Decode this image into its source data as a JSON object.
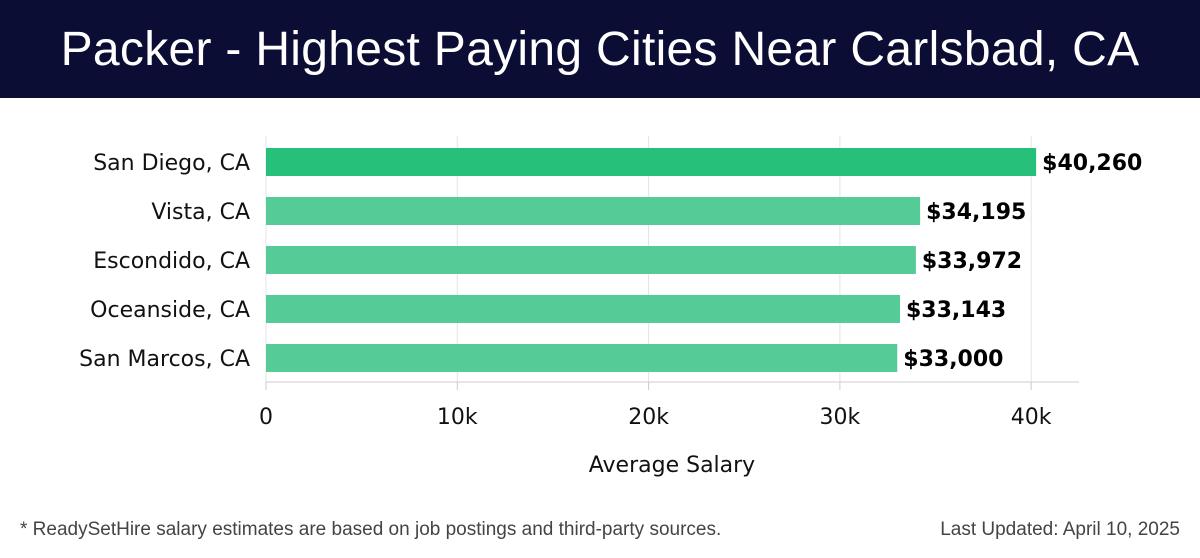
{
  "header": {
    "title": "Packer - Highest Paying Cities Near Carlsbad, CA"
  },
  "chart_data": {
    "type": "bar",
    "orientation": "horizontal",
    "categories": [
      "San Diego, CA",
      "Vista, CA",
      "Escondido, CA",
      "Oceanside, CA",
      "San Marcos, CA"
    ],
    "values": [
      40260,
      34195,
      33972,
      33143,
      33000
    ],
    "value_labels": [
      "$40,260",
      "$34,195",
      "$33,972",
      "$33,143",
      "$33,000"
    ],
    "xticks": [
      0,
      10000,
      20000,
      30000,
      40000
    ],
    "xtick_labels": [
      "0",
      "10k",
      "20k",
      "30k",
      "40k"
    ],
    "xlim": [
      0,
      42500
    ],
    "xlabel": "Average Salary",
    "grid": true,
    "colors": {
      "highlight": "#27c07a",
      "bar": "#55cc97"
    }
  },
  "footer": {
    "note": "* ReadySetHire salary estimates are based on job postings and third-party sources.",
    "updated": "Last Updated: April 10, 2025"
  }
}
